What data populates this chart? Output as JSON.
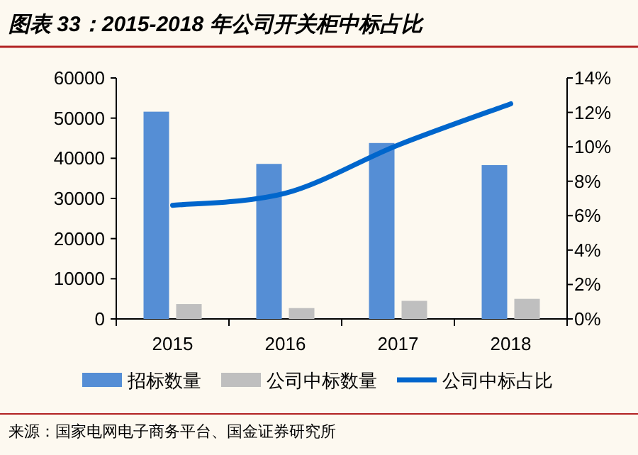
{
  "chart_data": {
    "type": "bar",
    "title": "图表 33：2015-2018 年公司开关柜中标占比",
    "categories": [
      "2015",
      "2016",
      "2017",
      "2018"
    ],
    "series": [
      {
        "name": "招标数量",
        "color": "#558ed5",
        "values": [
          51600,
          38600,
          43800,
          38300
        ]
      },
      {
        "name": "公司中标数量",
        "color": "#bfbfbf",
        "values": [
          3700,
          2700,
          4500,
          5000
        ]
      },
      {
        "name": "公司中标占比",
        "color": "#0066cc",
        "type": "line",
        "axis": "y2",
        "values": [
          6.6,
          7.3,
          10.1,
          12.5
        ]
      }
    ],
    "ylim": [
      0,
      60000
    ],
    "yticks": [
      0,
      10000,
      20000,
      30000,
      40000,
      50000,
      60000
    ],
    "y2lim": [
      0,
      14
    ],
    "y2ticks": [
      {
        "value": 0,
        "label": "0%"
      },
      {
        "value": 2,
        "label": "2%"
      },
      {
        "value": 4,
        "label": "4%"
      },
      {
        "value": 6,
        "label": "6%"
      },
      {
        "value": 8,
        "label": "8%"
      },
      {
        "value": 10,
        "label": "10%"
      },
      {
        "value": 12,
        "label": "12%"
      },
      {
        "value": 14,
        "label": "14%"
      }
    ],
    "legend": "bottom",
    "grid": false,
    "annotations": [
      "来源：国家电网电子商务平台、国金证券研究所"
    ]
  }
}
